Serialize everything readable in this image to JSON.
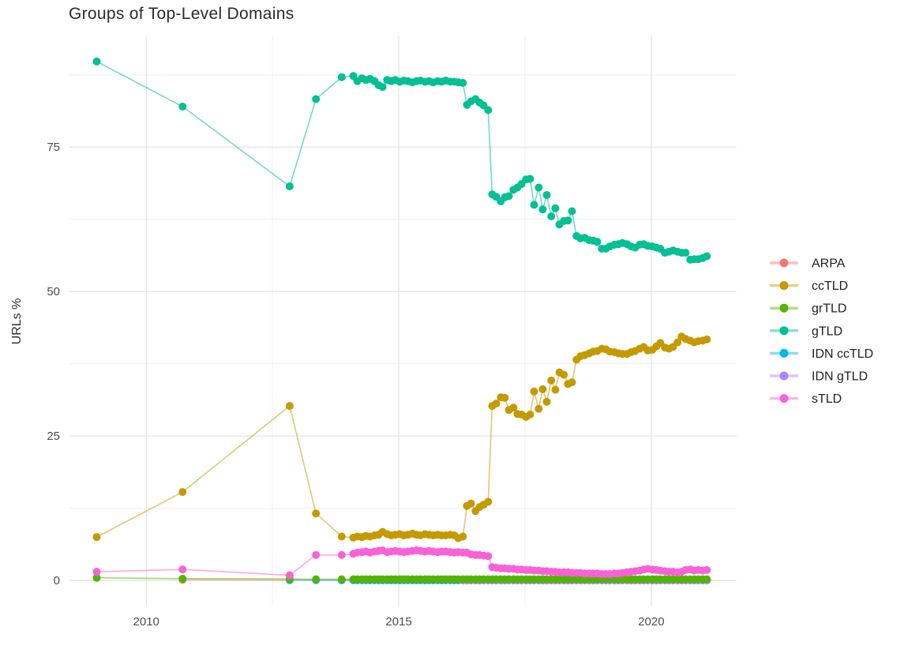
{
  "page": {
    "title": "Groups of Top-Level Domains"
  },
  "chart_data": {
    "type": "line",
    "title": "Groups of Top-Level Domains",
    "xlabel": "",
    "ylabel": "URLs %",
    "grid": true,
    "legend_position": "right",
    "x_tick_labels": [
      "2010",
      "2015",
      "2020"
    ],
    "x_ticks": [
      2010,
      2015,
      2020
    ],
    "x_minor_ticks": [
      2012.5,
      2017.5
    ],
    "y_tick_labels": [
      "0",
      "25",
      "50",
      "75"
    ],
    "y_ticks": [
      0,
      25,
      50,
      75
    ],
    "y_minor_ticks": [
      12.5,
      37.5,
      62.5,
      87.5
    ],
    "xlim": [
      2008.48,
      2021.69
    ],
    "ylim": [
      -4.5,
      94.3
    ],
    "colors": {
      "ARPA": "#F8766D",
      "ccTLD": "#C49A00",
      "grTLD": "#53B400",
      "gTLD": "#00C094",
      "IDN ccTLD": "#00B6EB",
      "IDN gTLD": "#A58AFF",
      "sTLD": "#FB61D7"
    },
    "legend": [
      {
        "label": "ARPA",
        "color": "#F8766D"
      },
      {
        "label": "ccTLD",
        "color": "#C49A00"
      },
      {
        "label": "grTLD",
        "color": "#53B400"
      },
      {
        "label": "gTLD",
        "color": "#00C094"
      },
      {
        "label": "IDN ccTLD",
        "color": "#00B6EB"
      },
      {
        "label": "IDN gTLD",
        "color": "#A58AFF"
      },
      {
        "label": "sTLD",
        "color": "#FB61D7"
      }
    ],
    "draw_order": [
      "ARPA",
      "ccTLD",
      "IDN ccTLD",
      "IDN gTLD",
      "grTLD",
      "gTLD",
      "sTLD"
    ],
    "x_dense": [
      2014.1,
      2014.18,
      2014.27,
      2014.35,
      2014.43,
      2014.52,
      2014.6,
      2014.68,
      2014.77,
      2014.85,
      2014.93,
      2015.02,
      2015.1,
      2015.18,
      2015.27,
      2015.35,
      2015.43,
      2015.52,
      2015.6,
      2015.68,
      2015.77,
      2015.85,
      2015.93,
      2016.02,
      2016.1,
      2016.18,
      2016.27,
      2016.35,
      2016.43,
      2016.52,
      2016.6,
      2016.68,
      2016.77,
      2016.85,
      2016.93,
      2017.02,
      2017.1,
      2017.18,
      2017.27,
      2017.35,
      2017.43,
      2017.52,
      2017.6,
      2017.68,
      2017.77,
      2017.85,
      2017.93,
      2018.02,
      2018.1,
      2018.18,
      2018.27,
      2018.35,
      2018.43,
      2018.52,
      2018.6,
      2018.68,
      2018.77,
      2018.85,
      2018.93,
      2019.02,
      2019.1,
      2019.18,
      2019.27,
      2019.35,
      2019.43,
      2019.52,
      2019.6,
      2019.68,
      2019.77,
      2019.85,
      2019.93,
      2020.02,
      2020.1,
      2020.18,
      2020.27,
      2020.35,
      2020.43,
      2020.52,
      2020.6,
      2020.68,
      2020.77,
      2020.85,
      2020.93,
      2021.02,
      2021.1
    ],
    "series": [
      {
        "name": "ARPA",
        "color": "#F8766D",
        "sparse": [
          [
            2010.72,
            0.1
          ],
          [
            2012.84,
            0.05
          ],
          [
            2013.87,
            0.02
          ]
        ],
        "dense_fill": 0.02,
        "dense_offset": 0
      },
      {
        "name": "ccTLD",
        "color": "#C49A00",
        "sparse": [
          [
            2009.02,
            7.5
          ],
          [
            2010.72,
            15.3
          ],
          [
            2012.84,
            30.2
          ],
          [
            2013.36,
            11.6
          ],
          [
            2013.87,
            7.6
          ]
        ],
        "dense": [
          7.4,
          7.6,
          7.5,
          7.7,
          7.6,
          7.8,
          7.9,
          8.4,
          8.0,
          7.8,
          7.9,
          8.0,
          7.8,
          7.9,
          8.1,
          7.9,
          7.8,
          8.0,
          7.9,
          7.8,
          7.9,
          7.8,
          7.8,
          7.9,
          7.8,
          7.3,
          7.6,
          12.9,
          13.3,
          12.0,
          12.7,
          13.1,
          13.6,
          30.2,
          30.6,
          31.7,
          31.6,
          29.5,
          29.9,
          28.8,
          28.7,
          28.3,
          28.7,
          32.7,
          29.7,
          33.1,
          30.9,
          34.6,
          33.0,
          36.0,
          35.6,
          34.0,
          34.3,
          38.2,
          38.8,
          39.0,
          39.3,
          39.6,
          39.7,
          40.1,
          40.0,
          39.6,
          39.5,
          39.3,
          39.2,
          39.2,
          39.5,
          39.7,
          40.1,
          40.4,
          39.8,
          39.9,
          40.5,
          41.1,
          40.3,
          40.1,
          40.4,
          41.2,
          42.2,
          41.8,
          41.5,
          41.2,
          41.4,
          41.5,
          41.7
        ],
        "dense_offset": 0
      },
      {
        "name": "IDN ccTLD",
        "color": "#00B6EB",
        "sparse": [
          [
            2012.84,
            0.05
          ],
          [
            2013.36,
            0.05
          ],
          [
            2013.87,
            0.05
          ]
        ],
        "dense_fill": 0.05,
        "dense_offset": 0
      },
      {
        "name": "IDN gTLD",
        "color": "#A58AFF",
        "sparse": [],
        "dense_fill": 0.0,
        "dense_offset": 26
      },
      {
        "name": "grTLD",
        "color": "#53B400",
        "sparse": [
          [
            2009.02,
            0.45
          ],
          [
            2010.72,
            0.3
          ],
          [
            2012.84,
            0.25
          ],
          [
            2013.36,
            0.2
          ],
          [
            2013.87,
            0.2
          ]
        ],
        "dense_fill": 0.2,
        "dense_offset": 0
      },
      {
        "name": "gTLD",
        "color": "#00C094",
        "sparse": [
          [
            2009.02,
            89.8
          ],
          [
            2010.72,
            82.0
          ],
          [
            2012.84,
            68.2
          ],
          [
            2013.36,
            83.3
          ],
          [
            2013.87,
            87.1
          ]
        ],
        "dense": [
          87.3,
          86.4,
          86.9,
          86.6,
          86.8,
          86.4,
          85.7,
          85.4,
          86.6,
          86.4,
          86.6,
          86.3,
          86.5,
          86.4,
          86.2,
          86.4,
          86.5,
          86.3,
          86.4,
          86.2,
          86.4,
          86.3,
          86.5,
          86.3,
          86.3,
          86.2,
          86.1,
          82.3,
          82.9,
          83.3,
          82.7,
          82.2,
          81.4,
          66.8,
          66.4,
          65.6,
          66.3,
          66.5,
          67.6,
          68.0,
          68.6,
          69.4,
          69.5,
          65.0,
          68.0,
          64.2,
          66.7,
          63.0,
          64.4,
          61.6,
          62.2,
          62.3,
          63.9,
          59.6,
          59.2,
          59.3,
          58.9,
          58.8,
          58.6,
          57.4,
          57.4,
          57.8,
          58.1,
          58.2,
          58.4,
          58.2,
          57.8,
          57.6,
          58.1,
          58.2,
          57.9,
          57.8,
          57.6,
          57.4,
          56.7,
          56.9,
          57.1,
          56.9,
          56.7,
          56.7,
          55.5,
          55.6,
          55.6,
          55.8,
          56.1
        ],
        "dense_offset": 0
      },
      {
        "name": "sTLD",
        "color": "#FB61D7",
        "sparse": [
          [
            2009.02,
            1.5
          ],
          [
            2010.72,
            1.9
          ],
          [
            2012.84,
            0.9
          ],
          [
            2013.36,
            4.4
          ],
          [
            2013.87,
            4.4
          ]
        ],
        "dense": [
          4.6,
          4.8,
          4.9,
          5.0,
          4.8,
          5.0,
          5.1,
          5.2,
          4.9,
          5.0,
          5.1,
          5.0,
          4.9,
          5.0,
          5.1,
          5.2,
          5.1,
          5.0,
          5.1,
          5.0,
          4.9,
          5.0,
          5.0,
          4.9,
          4.8,
          4.9,
          4.8,
          4.8,
          4.5,
          4.4,
          4.4,
          4.3,
          4.2,
          2.3,
          2.2,
          2.1,
          2.1,
          2.0,
          2.0,
          1.9,
          1.9,
          1.8,
          1.8,
          1.7,
          1.7,
          1.6,
          1.6,
          1.5,
          1.5,
          1.4,
          1.4,
          1.4,
          1.3,
          1.3,
          1.3,
          1.2,
          1.2,
          1.2,
          1.2,
          1.1,
          1.1,
          1.1,
          1.2,
          1.2,
          1.3,
          1.4,
          1.5,
          1.6,
          1.7,
          1.9,
          2.0,
          1.9,
          1.8,
          1.7,
          1.6,
          1.5,
          1.5,
          1.4,
          1.5,
          1.8,
          1.9,
          1.7,
          1.8,
          1.7,
          1.8
        ],
        "dense_offset": 0
      }
    ]
  }
}
